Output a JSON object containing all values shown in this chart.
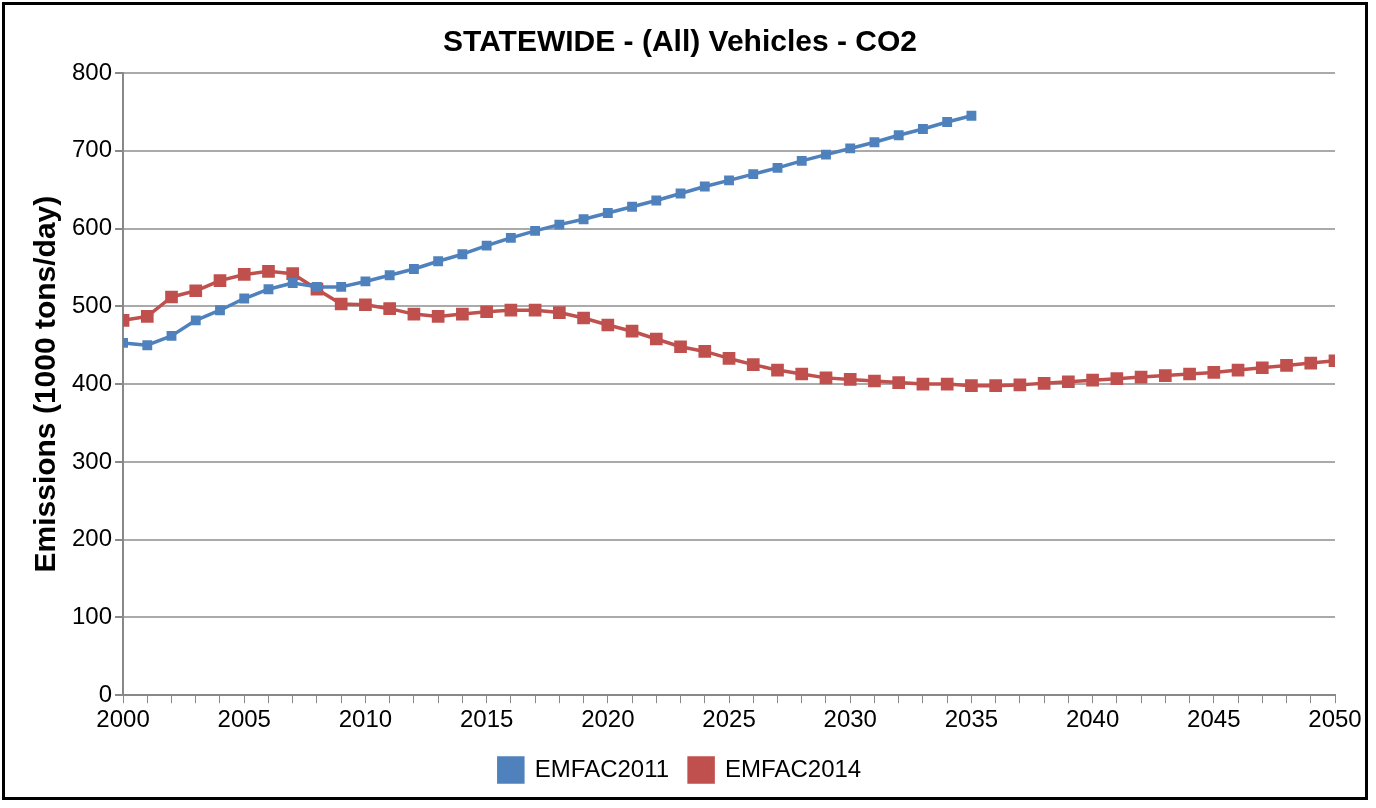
{
  "chart_data": {
    "type": "line",
    "title": "STATEWIDE - (All) Vehicles - CO2",
    "ylabel": "Emissions (1000 tons/day)",
    "xlim": [
      2000,
      2050
    ],
    "xticks": [
      2000,
      {
        "value": 2001,
        "label": null
      },
      {
        "value": 2002,
        "label": null
      },
      {
        "value": 2003,
        "label": null
      },
      {
        "value": 2004,
        "label": null
      },
      2005,
      {
        "value": 2006,
        "label": null
      },
      {
        "value": 2007,
        "label": null
      },
      {
        "value": 2008,
        "label": null
      },
      {
        "value": 2009,
        "label": null
      },
      2010,
      {
        "value": 2011,
        "label": null
      },
      {
        "value": 2012,
        "label": null
      },
      {
        "value": 2013,
        "label": null
      },
      {
        "value": 2014,
        "label": null
      },
      2015,
      {
        "value": 2016,
        "label": null
      },
      {
        "value": 2017,
        "label": null
      },
      {
        "value": 2018,
        "label": null
      },
      {
        "value": 2019,
        "label": null
      },
      2020,
      {
        "value": 2021,
        "label": null
      },
      {
        "value": 2022,
        "label": null
      },
      {
        "value": 2023,
        "label": null
      },
      {
        "value": 2024,
        "label": null
      },
      2025,
      {
        "value": 2026,
        "label": null
      },
      {
        "value": 2027,
        "label": null
      },
      {
        "value": 2028,
        "label": null
      },
      {
        "value": 2029,
        "label": null
      },
      2030,
      {
        "value": 2031,
        "label": null
      },
      {
        "value": 2032,
        "label": null
      },
      {
        "value": 2033,
        "label": null
      },
      {
        "value": 2034,
        "label": null
      },
      2035,
      {
        "value": 2036,
        "label": null
      },
      {
        "value": 2037,
        "label": null
      },
      {
        "value": 2038,
        "label": null
      },
      {
        "value": 2039,
        "label": null
      },
      2040,
      {
        "value": 2041,
        "label": null
      },
      {
        "value": 2042,
        "label": null
      },
      {
        "value": 2043,
        "label": null
      },
      {
        "value": 2044,
        "label": null
      },
      2045,
      {
        "value": 2046,
        "label": null
      },
      {
        "value": 2047,
        "label": null
      },
      {
        "value": 2048,
        "label": null
      },
      {
        "value": 2049,
        "label": null
      },
      2050
    ],
    "ylim": [
      0,
      800
    ],
    "yticks": [
      0,
      100,
      200,
      300,
      400,
      500,
      600,
      700,
      800
    ],
    "grid": "y",
    "legend": "bottom",
    "marker": "square",
    "line_style": "solid",
    "series": [
      {
        "name": "EMFAC2011",
        "color": "#4f81bd",
        "x": [
          2000,
          2001,
          2002,
          2003,
          2004,
          2005,
          2006,
          2007,
          2008,
          2009,
          2010,
          2011,
          2012,
          2013,
          2014,
          2015,
          2016,
          2017,
          2018,
          2019,
          2020,
          2021,
          2022,
          2023,
          2024,
          2025,
          2026,
          2027,
          2028,
          2029,
          2030,
          2031,
          2032,
          2033,
          2034,
          2035
        ],
        "values": [
          453,
          450,
          462,
          482,
          495,
          510,
          522,
          530,
          525,
          525,
          532,
          540,
          548,
          558,
          567,
          578,
          588,
          597,
          605,
          612,
          620,
          628,
          636,
          645,
          654,
          662,
          670,
          678,
          687,
          695,
          703,
          711,
          720,
          728,
          737,
          745
        ]
      },
      {
        "name": "EMFAC2014",
        "color": "#c0504d",
        "x": [
          2000,
          2001,
          2002,
          2003,
          2004,
          2005,
          2006,
          2007,
          2008,
          2009,
          2010,
          2011,
          2012,
          2013,
          2014,
          2015,
          2016,
          2017,
          2018,
          2019,
          2020,
          2021,
          2022,
          2023,
          2024,
          2025,
          2026,
          2027,
          2028,
          2029,
          2030,
          2031,
          2032,
          2033,
          2034,
          2035,
          2036,
          2037,
          2038,
          2039,
          2040,
          2041,
          2042,
          2043,
          2044,
          2045,
          2046,
          2047,
          2048,
          2049,
          2050
        ],
        "values": [
          482,
          487,
          512,
          520,
          533,
          541,
          545,
          542,
          522,
          503,
          502,
          497,
          490,
          487,
          490,
          493,
          495,
          495,
          492,
          485,
          476,
          468,
          458,
          448,
          442,
          433,
          425,
          418,
          413,
          408,
          406,
          404,
          402,
          400,
          400,
          398,
          398,
          399,
          401,
          403,
          405,
          407,
          409,
          411,
          413,
          415,
          418,
          421,
          424,
          427,
          430
        ]
      }
    ]
  }
}
